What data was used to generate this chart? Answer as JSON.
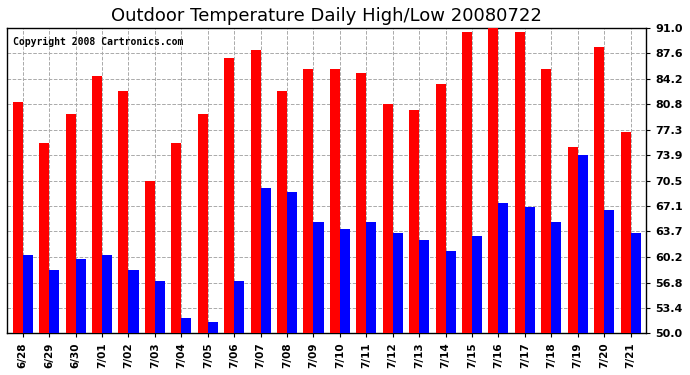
{
  "title": "Outdoor Temperature Daily High/Low 20080722",
  "copyright": "Copyright 2008 Cartronics.com",
  "labels": [
    "6/28",
    "6/29",
    "6/30",
    "7/01",
    "7/02",
    "7/03",
    "7/04",
    "7/05",
    "7/06",
    "7/07",
    "7/08",
    "7/09",
    "7/10",
    "7/11",
    "7/12",
    "7/13",
    "7/14",
    "7/15",
    "7/16",
    "7/17",
    "7/18",
    "7/19",
    "7/20",
    "7/21"
  ],
  "highs": [
    81.0,
    75.5,
    79.5,
    84.5,
    82.5,
    70.5,
    75.5,
    79.5,
    87.0,
    88.0,
    82.5,
    85.5,
    85.5,
    85.0,
    80.8,
    80.0,
    83.5,
    90.5,
    91.5,
    90.5,
    85.5,
    75.0,
    88.5,
    77.0
  ],
  "lows": [
    60.5,
    58.5,
    60.0,
    60.5,
    58.5,
    57.0,
    52.0,
    51.5,
    57.0,
    69.5,
    69.0,
    65.0,
    64.0,
    65.0,
    63.5,
    62.5,
    61.0,
    63.0,
    67.5,
    67.0,
    65.0,
    74.0,
    66.5,
    63.5
  ],
  "ylim": [
    50.0,
    91.0
  ],
  "yticks": [
    50.0,
    53.4,
    56.8,
    60.2,
    63.7,
    67.1,
    70.5,
    73.9,
    77.3,
    80.8,
    84.2,
    87.6,
    91.0
  ],
  "high_color": "#FF0000",
  "low_color": "#0000FF",
  "bg_color": "#FFFFFF",
  "grid_color": "#AAAAAA",
  "title_fontsize": 13,
  "bar_width": 0.38
}
